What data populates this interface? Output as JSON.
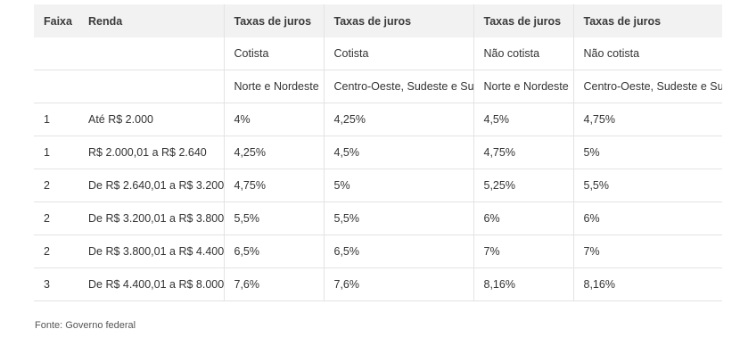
{
  "table": {
    "headers": [
      "Faixa",
      "Renda",
      "Taxas de juros",
      "Taxas de juros",
      "Taxas de juros",
      "Taxas de juros"
    ],
    "subheaders": [
      [
        "",
        "",
        "Cotista",
        "Cotista",
        "Não cotista",
        "Não cotista"
      ],
      [
        "",
        "",
        "Norte e Nordeste",
        "Centro-Oeste, Sudeste e Sul",
        "Norte e Nordeste",
        "Centro-Oeste, Sudeste e Sul"
      ]
    ],
    "rows": [
      [
        "1",
        "Até R$ 2.000",
        "4%",
        "4,25%",
        "4,5%",
        "4,75%"
      ],
      [
        "1",
        "R$ 2.000,01 a R$ 2.640",
        "4,25%",
        "4,5%",
        "4,75%",
        "5%"
      ],
      [
        "2",
        "De R$ 2.640,01 a R$ 3.200",
        "4,75%",
        "5%",
        "5,25%",
        "5,5%"
      ],
      [
        "2",
        "De R$ 3.200,01 a R$ 3.800",
        "5,5%",
        "5,5%",
        "6%",
        "6%"
      ],
      [
        "2",
        "De R$ 3.800,01 a R$ 4.400",
        "6,5%",
        "6,5%",
        "7%",
        "7%"
      ],
      [
        "3",
        "De R$ 4.400,01 a R$ 8.000",
        "7,6%",
        "7,6%",
        "8,16%",
        "8,16%"
      ]
    ]
  },
  "source": "Fonte: Governo federal"
}
